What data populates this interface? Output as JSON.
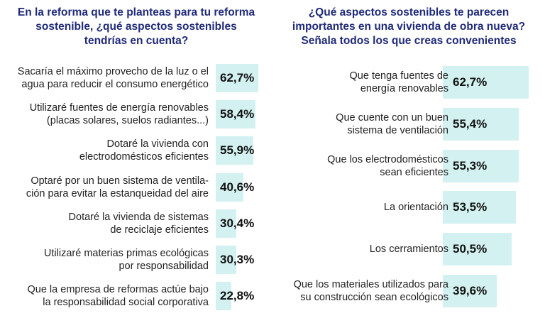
{
  "chart_data": [
    {
      "type": "bar",
      "orientation": "horizontal",
      "title": "En la reforma que te planteas para tu reforma sostenible, ¿qué aspectos sostenibles tendrías en cuenta?",
      "title_lines": [
        "En la reforma que te planteas para tu reforma",
        "sostenible, ¿qué aspectos sostenibles",
        "tendrías en cuenta?"
      ],
      "categories": [
        [
          "Sacaría el máximo provecho de la luz o el",
          "agua para reducir el consumo energético"
        ],
        [
          "Utilizaré fuentes de energía renovables",
          "(placas solares, suelos radiantes...)"
        ],
        [
          "Dotaré la vivienda con",
          "electrodomésticos eficientes"
        ],
        [
          "Optaré por un buen sistema de ventila-",
          "ción para evitar la estanqueidad del aire"
        ],
        [
          "Dotaré la vivienda de sistemas",
          "de reciclaje eficientes"
        ],
        [
          "Utilizaré materias primas ecológicas",
          "por responsabilidad"
        ],
        [
          "Que la empresa de reformas actúe bajo",
          "la responsabilidad social corporativa"
        ]
      ],
      "values": [
        62.7,
        58.4,
        55.9,
        40.6,
        30.4,
        30.3,
        22.8
      ],
      "labels": [
        "62,7%",
        "58,4%",
        "55,9%",
        "40,6%",
        "30,4%",
        "30,3%",
        "22,8%"
      ],
      "xlim": [
        0,
        62.7
      ],
      "bar_color": "#d3f1f0",
      "title_color": "#1f2a78"
    },
    {
      "type": "bar",
      "orientation": "horizontal",
      "title": "¿Qué aspectos sostenibles te parecen importantes en una vivienda de obra nueva? Señala todos los que creas convenientes",
      "title_lines": [
        "¿Qué aspectos sostenibles te parecen",
        "importantes en una vivienda de obra nueva?",
        "Señala todos los que creas convenientes"
      ],
      "categories": [
        [
          "Que tenga fuentes de",
          "energía renovables"
        ],
        [
          "Que cuente con un buen",
          "sistema de ventilación"
        ],
        [
          "Que los electrodomésticos",
          "sean eficientes"
        ],
        [
          "La orientación"
        ],
        [
          "Los cerramientos"
        ],
        [
          "Que los materiales utilizados para",
          "su construcción sean ecológicos"
        ]
      ],
      "values": [
        62.7,
        55.4,
        55.3,
        53.5,
        50.5,
        39.6
      ],
      "labels": [
        "62,7%",
        "55,4%",
        "55,3%",
        "53,5%",
        "50,5%",
        "39,6%"
      ],
      "xlim": [
        0,
        62.7
      ],
      "bar_color": "#d3f1f0",
      "title_color": "#1f2a78"
    }
  ]
}
